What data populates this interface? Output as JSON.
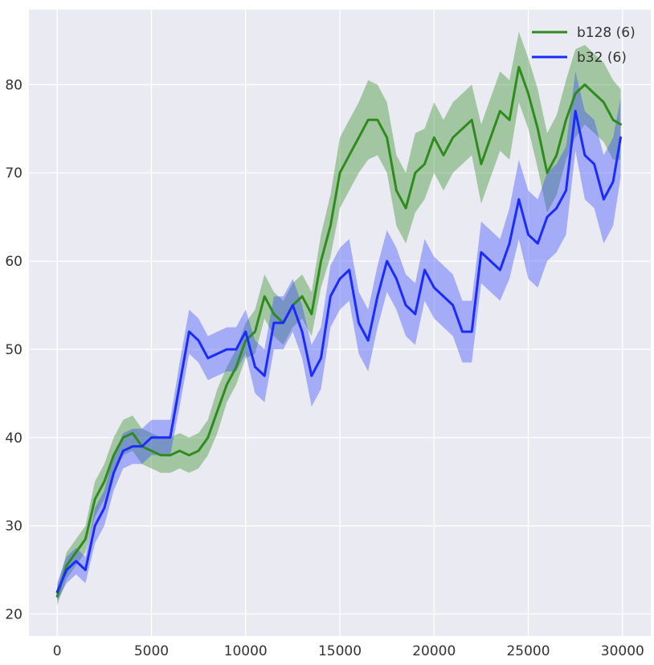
{
  "chart_data": {
    "type": "line",
    "title": "",
    "xlabel": "",
    "ylabel": "",
    "xlim": [
      -1500,
      31500
    ],
    "ylim": [
      17.5,
      88.5
    ],
    "xticks": [
      0,
      5000,
      10000,
      15000,
      20000,
      25000,
      30000
    ],
    "xtick_labels": [
      "0",
      "5000",
      "10000",
      "15000",
      "20000",
      "25000",
      "30000"
    ],
    "yticks": [
      20,
      30,
      40,
      50,
      60,
      70,
      80
    ],
    "ytick_labels": [
      "20",
      "30",
      "40",
      "50",
      "60",
      "70",
      "80"
    ],
    "grid": true,
    "legend": "top-right",
    "background_color": "#EAEAF2",
    "grid_color": "#FFFFFF",
    "series": [
      {
        "name": "b128 (6)",
        "color": "#2E8B1E",
        "band_color": "#2E8B1E",
        "x": [
          0,
          500,
          1000,
          1500,
          2000,
          2500,
          3000,
          3500,
          4000,
          4500,
          5000,
          5500,
          6000,
          6500,
          7000,
          7500,
          8000,
          8500,
          9000,
          9500,
          10000,
          10500,
          11000,
          11500,
          12000,
          12500,
          13000,
          13500,
          14000,
          14500,
          15000,
          15500,
          16000,
          16500,
          17000,
          17500,
          18000,
          18500,
          19000,
          19500,
          20000,
          20500,
          21000,
          21500,
          22000,
          22500,
          23000,
          23500,
          24000,
          24500,
          25000,
          25500,
          26000,
          26500,
          27000,
          27500,
          28000,
          28500,
          29000,
          29500,
          29900
        ],
        "y": [
          22,
          25.5,
          27,
          28.5,
          33,
          35,
          38,
          40,
          40.5,
          39,
          38.5,
          38,
          38,
          38.5,
          38,
          38.5,
          40,
          43,
          46,
          48,
          51,
          52,
          56,
          54,
          53,
          55,
          56,
          54,
          60,
          64,
          70,
          72,
          74,
          76,
          76,
          74,
          68,
          66,
          70,
          71,
          74,
          72,
          74,
          75,
          76,
          71,
          74,
          77,
          76,
          82,
          79,
          75,
          70,
          72,
          76,
          79,
          80,
          79,
          78,
          76,
          75.5
        ],
        "upper": [
          23,
          27,
          28.5,
          30,
          35,
          37,
          40,
          42,
          42.5,
          41,
          40.5,
          40,
          40,
          40.5,
          40,
          40.5,
          42,
          45.5,
          48,
          50,
          53,
          54.5,
          58.5,
          56.5,
          55.5,
          57.5,
          58.5,
          56.5,
          63,
          67.5,
          74,
          76,
          78,
          80.5,
          80,
          78,
          72,
          70,
          74.5,
          75,
          78,
          76,
          78,
          79,
          80,
          75.5,
          78.5,
          81.5,
          80.5,
          86,
          83,
          79.5,
          74.5,
          76.5,
          80.5,
          84,
          84.5,
          83.5,
          82.5,
          80.5,
          79.5
        ],
        "lower": [
          21,
          24,
          25.5,
          27,
          31,
          33,
          36,
          38,
          38.5,
          37,
          36.5,
          36,
          36,
          36.5,
          36,
          36.5,
          38,
          40.5,
          44,
          46,
          49,
          49.5,
          53.5,
          51.5,
          50.5,
          52.5,
          53.5,
          51.5,
          57,
          60.5,
          66,
          68,
          70,
          71.5,
          72,
          70,
          64,
          62,
          65.5,
          67,
          70,
          68,
          70,
          71,
          72,
          66.5,
          69.5,
          72.5,
          71.5,
          78,
          75,
          70.5,
          65.5,
          67.5,
          71.5,
          74,
          75.5,
          74.5,
          73.5,
          71.5,
          71.5
        ]
      },
      {
        "name": "b32 (6)",
        "color": "#1A2BFF",
        "band_color": "#3344FF",
        "x": [
          0,
          500,
          1000,
          1500,
          2000,
          2500,
          3000,
          3500,
          4000,
          4500,
          5000,
          5500,
          6000,
          6500,
          7000,
          7500,
          8000,
          8500,
          9000,
          9500,
          10000,
          10500,
          11000,
          11500,
          12000,
          12500,
          13000,
          13500,
          14000,
          14500,
          15000,
          15500,
          16000,
          16500,
          17000,
          17500,
          18000,
          18500,
          19000,
          19500,
          20000,
          20500,
          21000,
          21500,
          22000,
          22500,
          23000,
          23500,
          24000,
          24500,
          25000,
          25500,
          26000,
          26500,
          27000,
          27500,
          28000,
          28500,
          29000,
          29500,
          29900
        ],
        "y": [
          22.5,
          25,
          26,
          25,
          30,
          32,
          36,
          38.5,
          39,
          39,
          40,
          40,
          40,
          46,
          52,
          51,
          49,
          49.5,
          50,
          50,
          52,
          48,
          47,
          53,
          53,
          55,
          52,
          47,
          49,
          56,
          58,
          59,
          53,
          51,
          56,
          60,
          58,
          55,
          54,
          59,
          57,
          56,
          55,
          52,
          52,
          61,
          60,
          59,
          62,
          67,
          63,
          62,
          65,
          66,
          68,
          77,
          72,
          71,
          67,
          69,
          74
        ],
        "upper": [
          23.5,
          26.5,
          27.5,
          26.5,
          32,
          34,
          38,
          40.5,
          41,
          41,
          42,
          42,
          42,
          48.5,
          54.5,
          53.5,
          51.5,
          52,
          52.5,
          52.5,
          54.5,
          51,
          50,
          56,
          56,
          58,
          55,
          50.5,
          52.5,
          59.5,
          61.5,
          62.5,
          56.5,
          54.5,
          59.5,
          63.5,
          61.5,
          58.5,
          57.5,
          62.5,
          60.5,
          59.5,
          58.5,
          55.5,
          55.5,
          64.5,
          63.5,
          62.5,
          66,
          71.5,
          68,
          67,
          70,
          71,
          73,
          81.5,
          77,
          76,
          72,
          74,
          78.5
        ],
        "lower": [
          21.5,
          23.5,
          24.5,
          23.5,
          28,
          30,
          34,
          36.5,
          37,
          37,
          38,
          38,
          38,
          43.5,
          49.5,
          48.5,
          46.5,
          47,
          47.5,
          47.5,
          49.5,
          45,
          44,
          50,
          50,
          52,
          49,
          43.5,
          45.5,
          52.5,
          54.5,
          55.5,
          49.5,
          47.5,
          52.5,
          56.5,
          54.5,
          51.5,
          50.5,
          55.5,
          53.5,
          52.5,
          51.5,
          48.5,
          48.5,
          57.5,
          56.5,
          55.5,
          58,
          62.5,
          58,
          57,
          60,
          61,
          63,
          72.5,
          67,
          66,
          62,
          64,
          69.5
        ]
      }
    ]
  }
}
